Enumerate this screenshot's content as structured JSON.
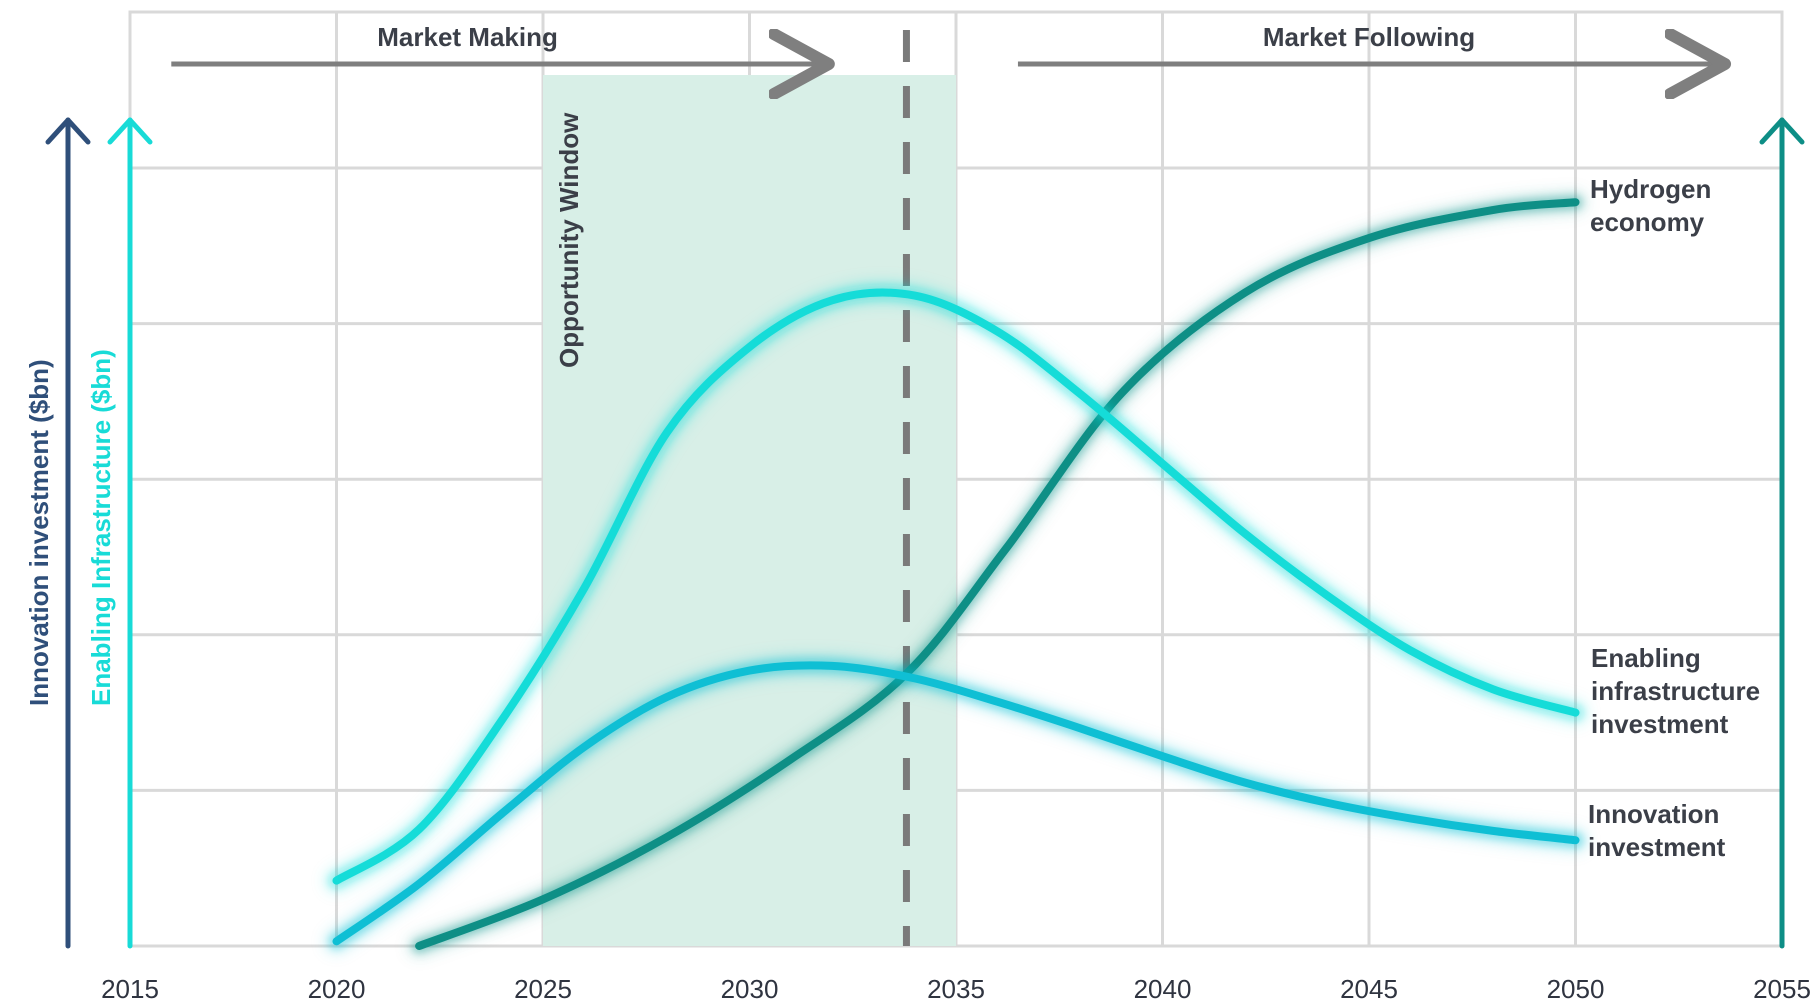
{
  "chart_data": {
    "type": "line",
    "title": "",
    "xlabel": "",
    "y_axes": {
      "left_outer_label": "Innovation investment ($bn)",
      "left_inner_label": "Enabling Infrastructure ($bn)"
    },
    "x_ticks": [
      "2015",
      "2020",
      "2025",
      "2030",
      "2035",
      "2040",
      "2045",
      "2050",
      "2055"
    ],
    "xlim": [
      2015,
      2055
    ],
    "ylim": [
      0,
      5
    ],
    "grid": true,
    "series": [
      {
        "name": "Hydrogen economy",
        "label_lines": [
          "Hydrogen",
          "economy"
        ],
        "color": "#0e8f86",
        "points": [
          [
            2022,
            0.0
          ],
          [
            2025,
            0.3
          ],
          [
            2028,
            0.7
          ],
          [
            2031,
            1.2
          ],
          [
            2033.8,
            1.75
          ],
          [
            2036.2,
            2.55
          ],
          [
            2039,
            3.55
          ],
          [
            2042,
            4.2
          ],
          [
            2045,
            4.55
          ],
          [
            2048,
            4.73
          ],
          [
            2050,
            4.78
          ]
        ]
      },
      {
        "name": "Enabling infrastructure investment",
        "label_lines": [
          "Enabling",
          "infrastructure",
          "investment"
        ],
        "color": "#15dcd8",
        "points": [
          [
            2020,
            0.42
          ],
          [
            2022,
            0.75
          ],
          [
            2024,
            1.45
          ],
          [
            2026,
            2.3
          ],
          [
            2028,
            3.3
          ],
          [
            2030,
            3.85
          ],
          [
            2032,
            4.15
          ],
          [
            2034,
            4.18
          ],
          [
            2036,
            3.95
          ],
          [
            2038,
            3.55
          ],
          [
            2040,
            3.1
          ],
          [
            2042,
            2.65
          ],
          [
            2044,
            2.25
          ],
          [
            2046,
            1.9
          ],
          [
            2048,
            1.65
          ],
          [
            2050,
            1.5
          ]
        ]
      },
      {
        "name": "Innovation investment",
        "label_lines": [
          "Innovation",
          "investment"
        ],
        "color": "#0fbfd4",
        "points": [
          [
            2020,
            0.03
          ],
          [
            2022,
            0.4
          ],
          [
            2024,
            0.85
          ],
          [
            2026,
            1.28
          ],
          [
            2028,
            1.6
          ],
          [
            2030,
            1.77
          ],
          [
            2032,
            1.8
          ],
          [
            2034,
            1.72
          ],
          [
            2036,
            1.57
          ],
          [
            2038,
            1.4
          ],
          [
            2040,
            1.22
          ],
          [
            2042,
            1.05
          ],
          [
            2044,
            0.92
          ],
          [
            2046,
            0.82
          ],
          [
            2048,
            0.74
          ],
          [
            2050,
            0.68
          ]
        ]
      }
    ],
    "annotations": {
      "market_making": "Market Making",
      "market_following": "Market Following",
      "opportunity_window": "Opportunity Window",
      "opportunity_window_range": [
        2025,
        2035
      ],
      "dashed_marker_x": 2033.8,
      "market_making_span": [
        2016,
        2031.8
      ],
      "market_following_span": [
        2036.5,
        2053.5
      ]
    },
    "colors": {
      "grid": "#d9d9d9",
      "window_fill": "#d8efe7",
      "dashed_line": "#7a7a7a",
      "arrow_gray": "#7f7f7f",
      "axis_navy": "#2f4f7a",
      "axis_cyan": "#18dbd7",
      "axis_teal": "#0d8e86"
    }
  }
}
